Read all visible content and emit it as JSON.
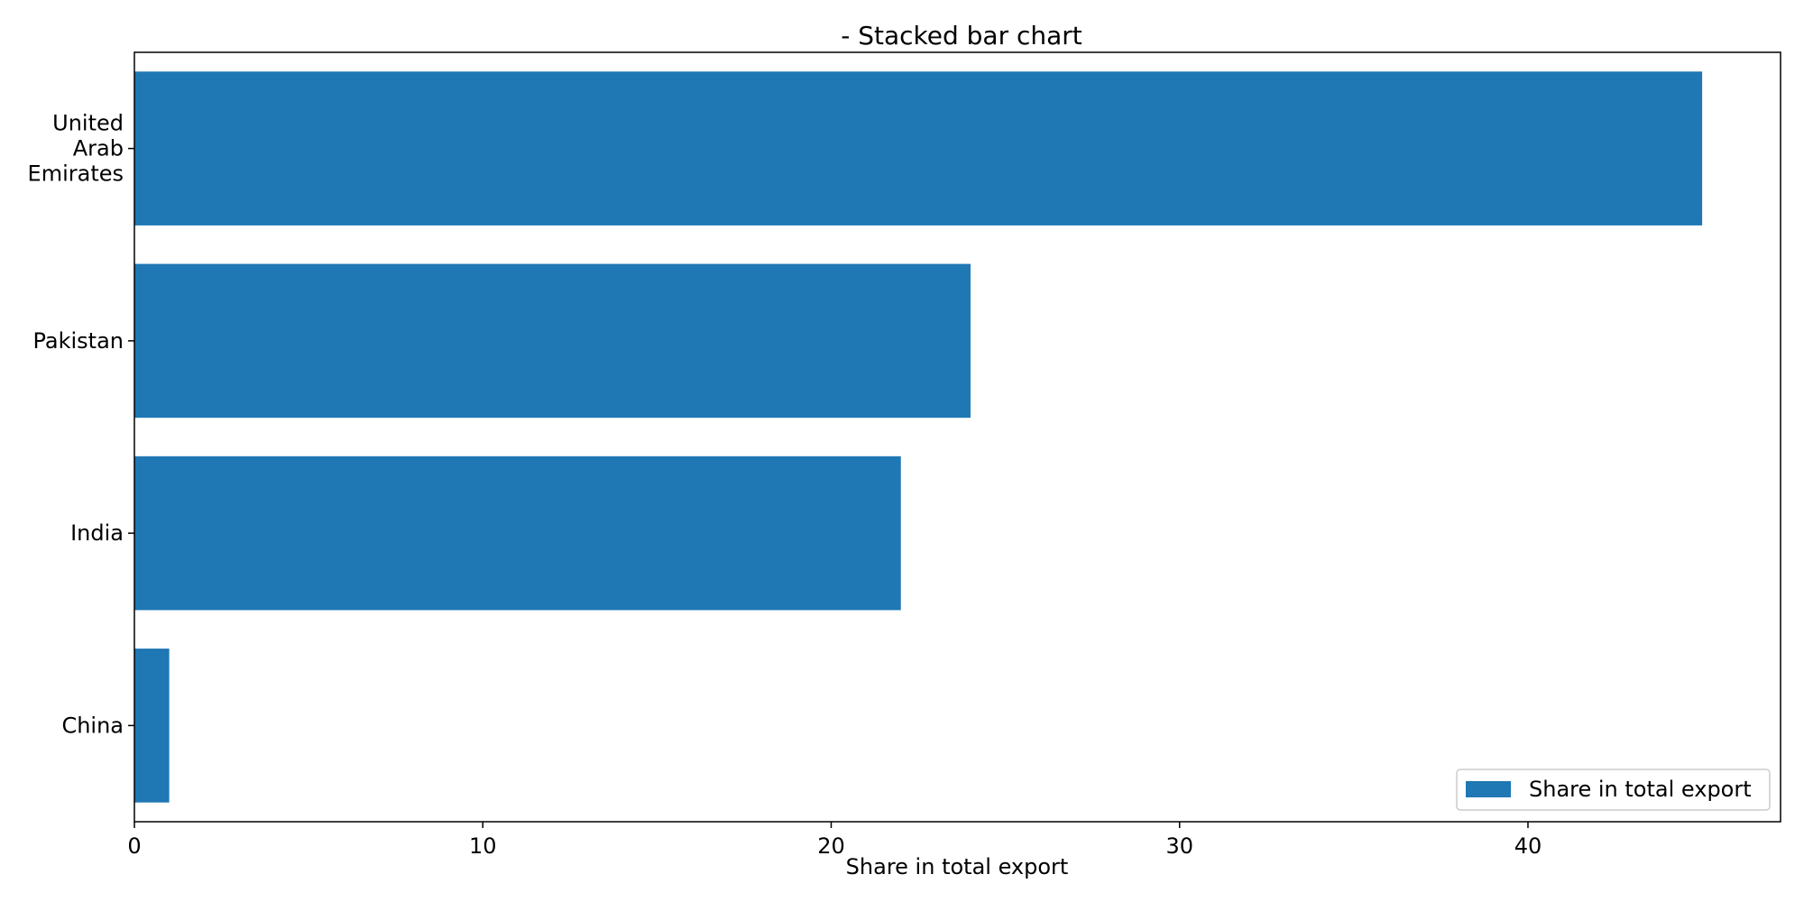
{
  "chart_data": {
    "type": "bar",
    "orientation": "horizontal",
    "title": "- Stacked bar chart",
    "xlabel": "Share in total export",
    "ylabel": "",
    "categories": [
      [
        "United",
        "Arab",
        "Emirates"
      ],
      [
        "Pakistan"
      ],
      [
        "India"
      ],
      [
        "China"
      ]
    ],
    "series": [
      {
        "name": "Share in total export",
        "values": [
          45,
          24,
          22,
          1
        ],
        "color": "#1f77b4"
      }
    ],
    "xlim": [
      0,
      47.25
    ],
    "xticks": [
      0,
      10,
      20,
      30,
      40
    ],
    "xtick_labels": [
      "0",
      "10",
      "20",
      "30",
      "40"
    ],
    "grid": false,
    "legend": {
      "placement": "lower-right"
    }
  }
}
